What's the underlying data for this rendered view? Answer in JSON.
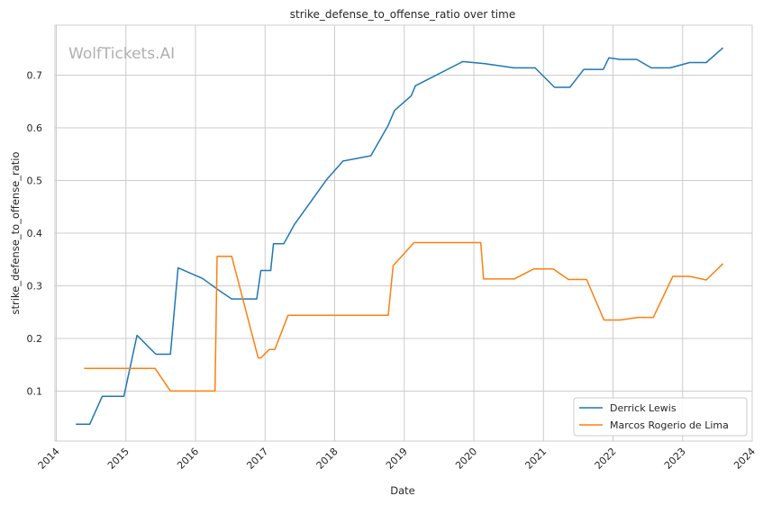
{
  "chart_data": {
    "type": "line",
    "title": "strike_defense_to_offense_ratio over time",
    "xlabel": "Date",
    "ylabel": "strike_defense_to_offense_ratio",
    "watermark": "WolfTickets.AI",
    "xlim": [
      2013.98,
      2024.0
    ],
    "ylim": [
      0.005,
      0.795
    ],
    "x_ticks": [
      2014,
      2015,
      2016,
      2017,
      2018,
      2019,
      2020,
      2021,
      2022,
      2023,
      2024
    ],
    "x_tick_labels": [
      "2014",
      "2015",
      "2016",
      "2017",
      "2018",
      "2019",
      "2020",
      "2021",
      "2022",
      "2023",
      "2024"
    ],
    "y_ticks": [
      0.1,
      0.2,
      0.3,
      0.4,
      0.5,
      0.6,
      0.7
    ],
    "y_tick_labels": [
      "0.1",
      "0.2",
      "0.3",
      "0.4",
      "0.5",
      "0.6",
      "0.7"
    ],
    "grid": true,
    "legend_position": "lower-right",
    "series": [
      {
        "name": "Derrick Lewis",
        "color": "#1f77b4",
        "points": [
          [
            2014.28,
            0.037
          ],
          [
            2014.48,
            0.037
          ],
          [
            2014.66,
            0.09
          ],
          [
            2014.97,
            0.09
          ],
          [
            2015.16,
            0.206
          ],
          [
            2015.43,
            0.17
          ],
          [
            2015.64,
            0.17
          ],
          [
            2015.75,
            0.334
          ],
          [
            2016.1,
            0.314
          ],
          [
            2016.35,
            0.29
          ],
          [
            2016.52,
            0.275
          ],
          [
            2016.88,
            0.275
          ],
          [
            2016.94,
            0.329
          ],
          [
            2017.08,
            0.329
          ],
          [
            2017.12,
            0.38
          ],
          [
            2017.27,
            0.38
          ],
          [
            2017.42,
            0.416
          ],
          [
            2017.88,
            0.501
          ],
          [
            2018.12,
            0.537
          ],
          [
            2018.52,
            0.547
          ],
          [
            2018.77,
            0.605
          ],
          [
            2018.86,
            0.633
          ],
          [
            2019.1,
            0.661
          ],
          [
            2019.16,
            0.68
          ],
          [
            2019.84,
            0.726
          ],
          [
            2020.16,
            0.722
          ],
          [
            2020.58,
            0.714
          ],
          [
            2020.88,
            0.714
          ],
          [
            2021.16,
            0.677
          ],
          [
            2021.38,
            0.677
          ],
          [
            2021.58,
            0.711
          ],
          [
            2021.86,
            0.711
          ],
          [
            2021.94,
            0.733
          ],
          [
            2022.1,
            0.73
          ],
          [
            2022.34,
            0.73
          ],
          [
            2022.55,
            0.714
          ],
          [
            2022.82,
            0.714
          ],
          [
            2023.1,
            0.724
          ],
          [
            2023.34,
            0.724
          ],
          [
            2023.58,
            0.752
          ]
        ]
      },
      {
        "name": "Marcos Rogerio de Lima",
        "color": "#ff7f0e",
        "points": [
          [
            2014.4,
            0.143
          ],
          [
            2015.42,
            0.143
          ],
          [
            2015.64,
            0.1
          ],
          [
            2016.28,
            0.1
          ],
          [
            2016.31,
            0.356
          ],
          [
            2016.52,
            0.356
          ],
          [
            2016.9,
            0.163
          ],
          [
            2016.94,
            0.163
          ],
          [
            2017.06,
            0.179
          ],
          [
            2017.14,
            0.179
          ],
          [
            2017.33,
            0.244
          ],
          [
            2018.77,
            0.244
          ],
          [
            2018.84,
            0.338
          ],
          [
            2019.14,
            0.382
          ],
          [
            2020.1,
            0.382
          ],
          [
            2020.14,
            0.313
          ],
          [
            2020.58,
            0.313
          ],
          [
            2020.86,
            0.332
          ],
          [
            2021.14,
            0.332
          ],
          [
            2021.36,
            0.312
          ],
          [
            2021.62,
            0.312
          ],
          [
            2021.87,
            0.235
          ],
          [
            2022.1,
            0.235
          ],
          [
            2022.36,
            0.24
          ],
          [
            2022.58,
            0.24
          ],
          [
            2022.86,
            0.318
          ],
          [
            2023.1,
            0.318
          ],
          [
            2023.34,
            0.311
          ],
          [
            2023.58,
            0.342
          ]
        ]
      }
    ]
  }
}
